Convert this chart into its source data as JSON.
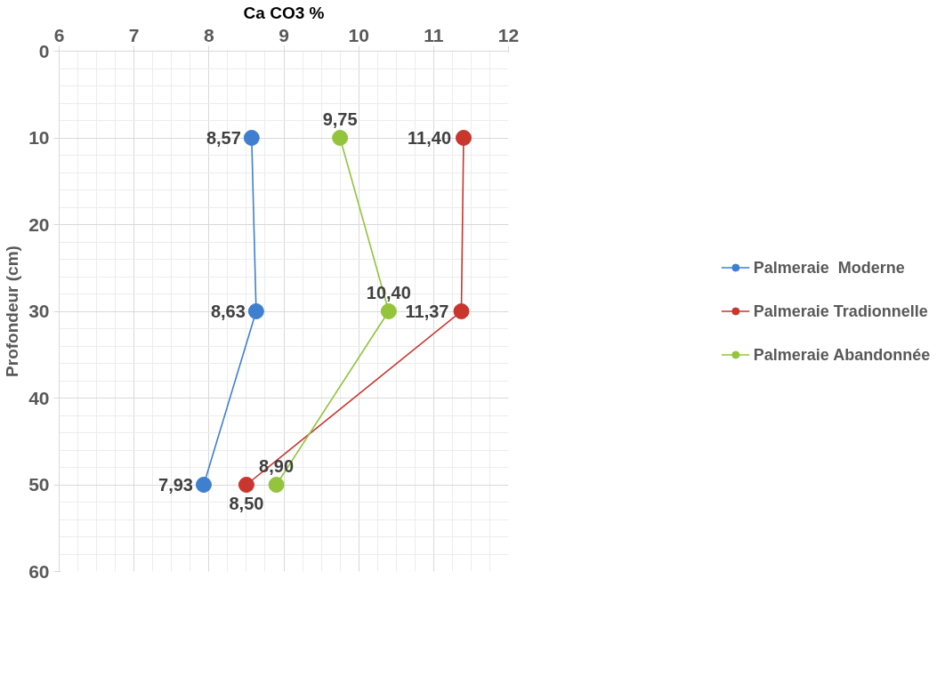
{
  "chart_data": {
    "type": "line",
    "orientation": "horizontal",
    "xlabel": "Ca CO3 %",
    "ylabel": "Profondeur (cm)",
    "xlim": [
      6,
      12
    ],
    "xticks": [
      6,
      7,
      8,
      9,
      10,
      11,
      12
    ],
    "ylim": [
      60,
      0
    ],
    "yticks": [
      0,
      10,
      20,
      30,
      40,
      50,
      60
    ],
    "grid": true,
    "legend": "right",
    "marker": "circle",
    "line_style": "solid",
    "series": [
      {
        "name": "Palmeraie  Moderne",
        "color": "#3f7fd0",
        "x": [
          10,
          30,
          50
        ],
        "values": [
          8.57,
          8.63,
          7.93
        ],
        "value_labels": [
          "8,57",
          "8,63",
          "7,93"
        ]
      },
      {
        "name": "Palmeraie Tradionnelle",
        "color": "#c8362e",
        "x": [
          10,
          30,
          50
        ],
        "values": [
          11.4,
          11.37,
          8.5
        ],
        "value_labels": [
          "11,40",
          "11,37",
          "8,50"
        ]
      },
      {
        "name": "Palmeraie Abandonnée",
        "color": "#93c43c",
        "x": [
          10,
          30,
          50
        ],
        "values": [
          9.75,
          10.4,
          8.9
        ],
        "value_labels": [
          "9,75",
          "10,40",
          "8,90"
        ]
      }
    ]
  }
}
